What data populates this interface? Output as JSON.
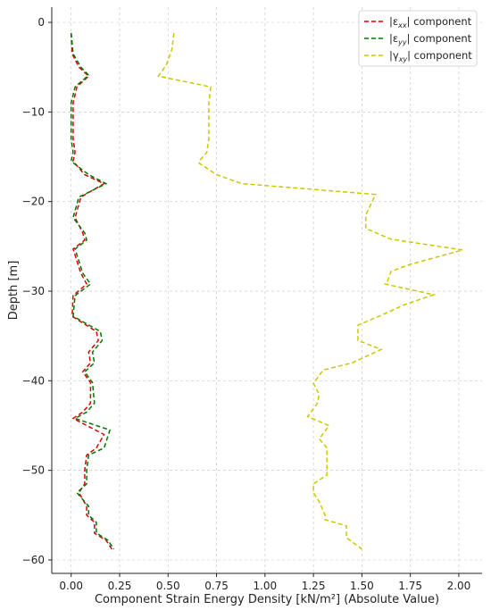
{
  "chart_data": {
    "type": "line",
    "title": "",
    "xlabel": "Component Strain Energy Density [kN/m²] (Absolute Value)",
    "ylabel": "Depth [m]",
    "xlim": [
      -0.1,
      2.12
    ],
    "ylim": [
      -61.5,
      1.7
    ],
    "x_ticks": [
      0.0,
      0.25,
      0.5,
      0.75,
      1.0,
      1.25,
      1.5,
      1.75,
      2.0
    ],
    "x_tick_labels": [
      "0.00",
      "0.25",
      "0.50",
      "0.75",
      "1.00",
      "1.25",
      "1.50",
      "1.75",
      "2.00"
    ],
    "y_ticks": [
      0,
      -10,
      -20,
      -30,
      -40,
      -50,
      -60
    ],
    "y_tick_labels": [
      "0",
      "−10",
      "−20",
      "−30",
      "−40",
      "−50",
      "−60"
    ],
    "grid": true,
    "legend_position": "top-right",
    "series": [
      {
        "name": "|ε",
        "name_sub": "xx",
        "name_suffix": "| component",
        "color": "#dd0000",
        "points": [
          [
            0.0,
            -1.2
          ],
          [
            0.005,
            -3.5
          ],
          [
            0.04,
            -5.0
          ],
          [
            0.09,
            -6.0
          ],
          [
            0.03,
            -7.2
          ],
          [
            0.01,
            -9.0
          ],
          [
            0.01,
            -11.0
          ],
          [
            0.01,
            -13.0
          ],
          [
            0.02,
            -14.5
          ],
          [
            0.01,
            -15.5
          ],
          [
            0.07,
            -17.0
          ],
          [
            0.17,
            -18.0
          ],
          [
            0.05,
            -19.5
          ],
          [
            0.02,
            -21.8
          ],
          [
            0.06,
            -23.5
          ],
          [
            0.07,
            -24.3
          ],
          [
            0.01,
            -25.3
          ],
          [
            0.05,
            -28.0
          ],
          [
            0.08,
            -29.2
          ],
          [
            0.01,
            -30.5
          ],
          [
            0.005,
            -32.8
          ],
          [
            0.13,
            -34.5
          ],
          [
            0.14,
            -35.5
          ],
          [
            0.09,
            -36.8
          ],
          [
            0.1,
            -38.0
          ],
          [
            0.06,
            -39.0
          ],
          [
            0.1,
            -40.2
          ],
          [
            0.1,
            -42.5
          ],
          [
            0.06,
            -43.5
          ],
          [
            0.01,
            -44.2
          ],
          [
            0.17,
            -46.0
          ],
          [
            0.13,
            -47.5
          ],
          [
            0.08,
            -48.3
          ],
          [
            0.07,
            -50.0
          ],
          [
            0.07,
            -51.5
          ],
          [
            0.04,
            -52.5
          ],
          [
            0.08,
            -54.0
          ],
          [
            0.08,
            -55.0
          ],
          [
            0.12,
            -55.8
          ],
          [
            0.12,
            -57.0
          ],
          [
            0.18,
            -57.8
          ],
          [
            0.21,
            -58.8
          ]
        ]
      },
      {
        "name": "|ε",
        "name_sub": "yy",
        "name_suffix": "| component",
        "color": "#007700",
        "points": [
          [
            0.0,
            -1.2
          ],
          [
            0.01,
            -3.5
          ],
          [
            0.05,
            -5.0
          ],
          [
            0.09,
            -5.9
          ],
          [
            0.02,
            -7.2
          ],
          [
            0.0,
            -9.0
          ],
          [
            0.0,
            -11.0
          ],
          [
            0.0,
            -13.0
          ],
          [
            0.01,
            -14.5
          ],
          [
            0.0,
            -15.5
          ],
          [
            0.09,
            -17.0
          ],
          [
            0.18,
            -18.0
          ],
          [
            0.04,
            -19.5
          ],
          [
            0.01,
            -21.8
          ],
          [
            0.07,
            -23.5
          ],
          [
            0.08,
            -24.3
          ],
          [
            0.02,
            -25.3
          ],
          [
            0.06,
            -28.0
          ],
          [
            0.1,
            -29.2
          ],
          [
            0.02,
            -30.5
          ],
          [
            0.01,
            -32.8
          ],
          [
            0.15,
            -34.5
          ],
          [
            0.16,
            -35.5
          ],
          [
            0.11,
            -36.8
          ],
          [
            0.12,
            -38.0
          ],
          [
            0.07,
            -39.0
          ],
          [
            0.11,
            -40.2
          ],
          [
            0.12,
            -42.5
          ],
          [
            0.08,
            -43.5
          ],
          [
            0.02,
            -44.2
          ],
          [
            0.2,
            -45.5
          ],
          [
            0.17,
            -47.5
          ],
          [
            0.09,
            -48.3
          ],
          [
            0.08,
            -50.0
          ],
          [
            0.08,
            -51.5
          ],
          [
            0.03,
            -52.5
          ],
          [
            0.09,
            -54.0
          ],
          [
            0.09,
            -55.0
          ],
          [
            0.13,
            -55.8
          ],
          [
            0.13,
            -57.0
          ],
          [
            0.19,
            -57.8
          ],
          [
            0.22,
            -58.8
          ]
        ]
      },
      {
        "name": "|γ",
        "name_sub": "xy",
        "name_suffix": "| component",
        "color": "#c8c800",
        "points": [
          [
            0.53,
            -1.2
          ],
          [
            0.52,
            -3.0
          ],
          [
            0.49,
            -4.8
          ],
          [
            0.45,
            -6.0
          ],
          [
            0.72,
            -7.2
          ],
          [
            0.71,
            -9.0
          ],
          [
            0.71,
            -11.0
          ],
          [
            0.71,
            -13.0
          ],
          [
            0.7,
            -14.5
          ],
          [
            0.66,
            -15.5
          ],
          [
            0.66,
            -15.7
          ],
          [
            0.75,
            -17.0
          ],
          [
            0.88,
            -18.0
          ],
          [
            1.57,
            -19.2
          ],
          [
            1.52,
            -21.5
          ],
          [
            1.52,
            -23.0
          ],
          [
            1.65,
            -24.2
          ],
          [
            2.02,
            -25.4
          ],
          [
            1.75,
            -27.0
          ],
          [
            1.65,
            -27.8
          ],
          [
            1.63,
            -29.0
          ],
          [
            1.62,
            -29.2
          ],
          [
            1.87,
            -30.4
          ],
          [
            1.72,
            -31.5
          ],
          [
            1.62,
            -32.5
          ],
          [
            1.48,
            -33.8
          ],
          [
            1.48,
            -35.5
          ],
          [
            1.6,
            -36.5
          ],
          [
            1.45,
            -38.0
          ],
          [
            1.3,
            -38.8
          ],
          [
            1.25,
            -40.3
          ],
          [
            1.28,
            -41.5
          ],
          [
            1.27,
            -42.5
          ],
          [
            1.22,
            -44.0
          ],
          [
            1.33,
            -45.0
          ],
          [
            1.28,
            -46.5
          ],
          [
            1.32,
            -47.5
          ],
          [
            1.32,
            -49.5
          ],
          [
            1.32,
            -50.5
          ],
          [
            1.25,
            -51.5
          ],
          [
            1.25,
            -52.5
          ],
          [
            1.28,
            -53.5
          ],
          [
            1.31,
            -55.0
          ],
          [
            1.31,
            -55.5
          ],
          [
            1.42,
            -56.2
          ],
          [
            1.42,
            -57.5
          ],
          [
            1.5,
            -58.8
          ]
        ]
      }
    ]
  }
}
